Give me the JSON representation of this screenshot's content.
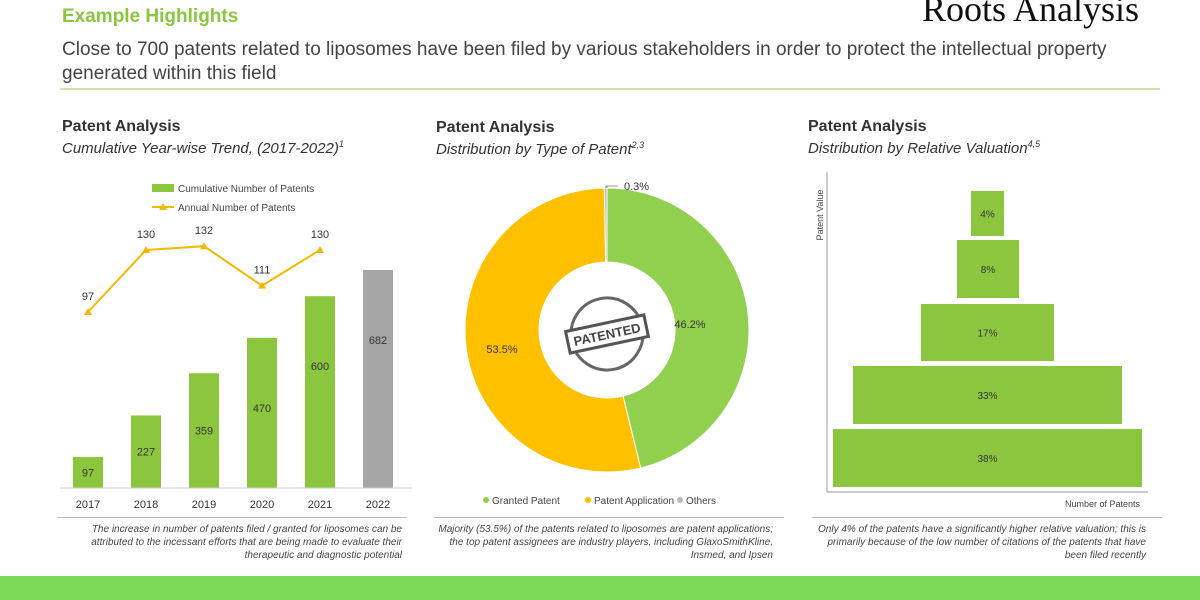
{
  "header": {
    "title": "Example Highlights",
    "subtitle": "Close to 700 patents related to liposomes have been filed by various stakeholders in order to protect the intellectual property generated within this field",
    "logo": "Roots Analysis"
  },
  "colors": {
    "green": "#8cc63f",
    "yellow": "#f5b800",
    "grey": "#a6a6a6",
    "donut_yellow": "#ffc000",
    "donut_green": "#92d050",
    "footer": "#7ed957"
  },
  "chart_data": [
    {
      "type": "bar",
      "title": "Patent Analysis",
      "subtitle": "Cumulative Year-wise Trend, (2017-2022)",
      "sup": "1",
      "categories": [
        "2017",
        "2018",
        "2019",
        "2020",
        "2021",
        "2022"
      ],
      "series": [
        {
          "name": "Cumulative Number of Patents",
          "type": "bar",
          "values": [
            97,
            227,
            359,
            470,
            600,
            682
          ]
        },
        {
          "name": "Annual Number of Patents",
          "type": "line",
          "values": [
            97,
            130,
            132,
            111,
            130,
            null
          ]
        }
      ],
      "note": "The increase in number of patents filed / granted for liposomes can be attributed to the incessant efforts that are being made to evaluate their therapeutic and diagnostic potential"
    },
    {
      "type": "pie",
      "title": "Patent Analysis",
      "subtitle": "Distribution by Type of Patent",
      "sup": "2,3",
      "center_label": "PATENTED",
      "slices": [
        {
          "name": "Granted Patent",
          "value": 46.2,
          "label": "46.2%"
        },
        {
          "name": "Patent Application",
          "value": 53.5,
          "label": "53.5%"
        },
        {
          "name": "Others",
          "value": 0.3,
          "label": "0.3%"
        }
      ],
      "note": "Majority (53.5%) of the patents related to liposomes are patent applications; the top patent assignees are industry players, including GlaxoSmithKline, Insmed, and Ipsen"
    },
    {
      "type": "bar",
      "title": "Patent Analysis",
      "subtitle": "Distribution by Relative Valuation",
      "sup": "4,5",
      "ylabel": "Patent Value",
      "xlabel": "Number of Patents",
      "levels": [
        {
          "label": "4%",
          "value": 4
        },
        {
          "label": "8%",
          "value": 8
        },
        {
          "label": "17%",
          "value": 17
        },
        {
          "label": "33%",
          "value": 33
        },
        {
          "label": "38%",
          "value": 38
        }
      ],
      "note": "Only 4% of the patents have a significantly higher relative valuation; this is primarily because of the low number of citations of the patents that have been filed recently"
    }
  ]
}
